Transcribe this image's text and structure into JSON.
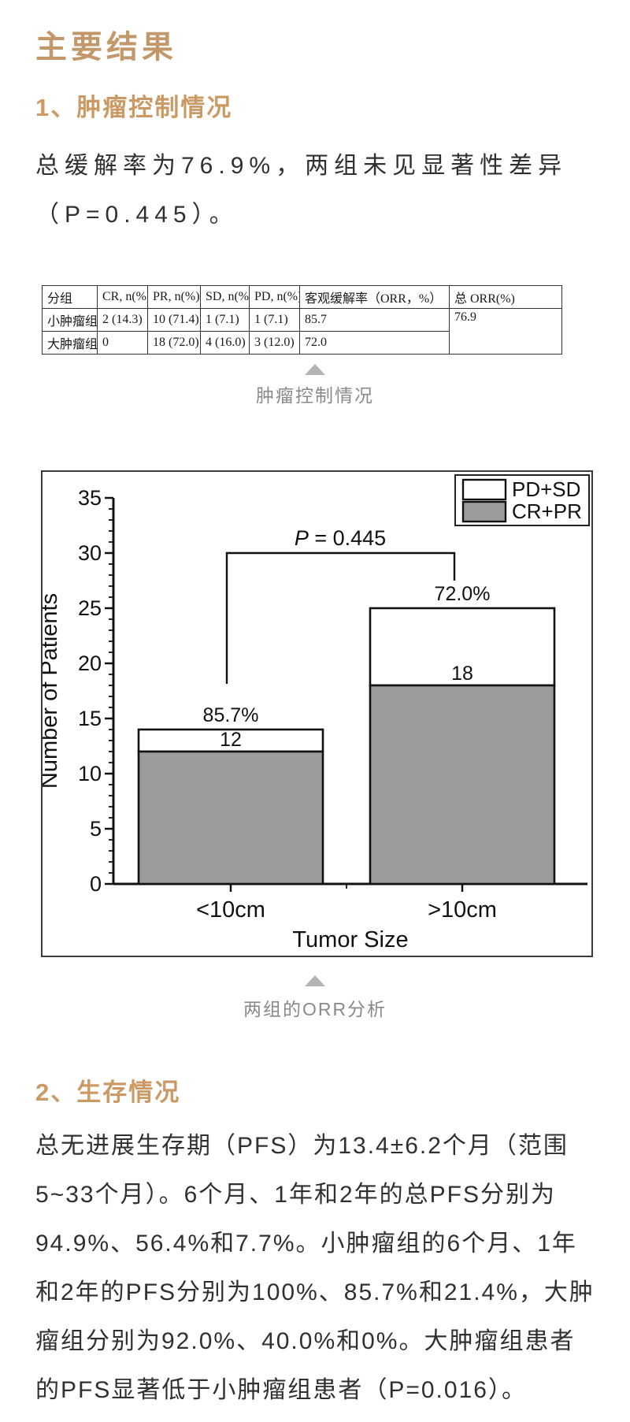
{
  "titles": {
    "main": "主要结果",
    "section1": "1、肿瘤控制情况",
    "section2": "2、生存情况"
  },
  "paragraphs": {
    "tumor_control": "总缓解率为76.9%，两组未见显著性差异（P=0.445）。",
    "survival": "总无进展生存期（PFS）为13.4±6.2个月（范围5~33个月）。6个月、1年和2年的总PFS分别为94.9%、56.4%和7.7%。小肿瘤组的6个月、1年和2年的PFS分别为100%、85.7%和21.4%，大肿瘤组分别为92.0%、40.0%和0%。大肿瘤组患者的PFS显著低于小肿瘤组患者（P=0.016）。"
  },
  "table": {
    "headers": [
      "分组",
      "CR, n(%)",
      "PR, n(%)",
      "SD, n(%)",
      "PD, n(%)",
      "客观缓解率（ORR，%）",
      "总 ORR(%)"
    ],
    "rows": [
      [
        "小肿瘤组",
        "2 (14.3)",
        "10 (71.4)",
        "1 (7.1)",
        "1 (7.1)",
        "85.7",
        "76.9"
      ],
      [
        "大肿瘤组",
        "0",
        "18 (72.0)",
        "4 (16.0)",
        "3 (12.0)",
        "72.0"
      ]
    ],
    "caption": "肿瘤控制情况"
  },
  "figure": {
    "caption": "两组的ORR分析"
  },
  "chart_data": {
    "type": "bar",
    "stacked": true,
    "categories": [
      "<10cm",
      ">10cm"
    ],
    "series": [
      {
        "name": "CR+PR",
        "values": [
          12,
          18
        ],
        "color": "#9b9b9b"
      },
      {
        "name": "PD+SD",
        "values": [
          2,
          7
        ],
        "color": "#ffffff"
      }
    ],
    "totals": [
      14,
      25
    ],
    "percent_labels": [
      "85.7%",
      "72.0%"
    ],
    "count_labels": [
      "12",
      "18"
    ],
    "annotation": "P = 0.445",
    "xlabel": "Tumor Size",
    "ylabel": "Number of Patients",
    "ylim": [
      0,
      35
    ],
    "yticks": [
      0,
      5,
      10,
      15,
      20,
      25,
      30,
      35
    ],
    "legend": [
      "PD+SD",
      "CR+PR"
    ],
    "legend_position": "top-right",
    "grid": false
  },
  "colors": {
    "serif_title": "#c2986a",
    "numbered_heading": "#cb9a64",
    "body_text": "#303030",
    "caption_text": "#8a8a8a",
    "bar_gray": "#9b9b9b",
    "chart_ink": "#111111"
  }
}
